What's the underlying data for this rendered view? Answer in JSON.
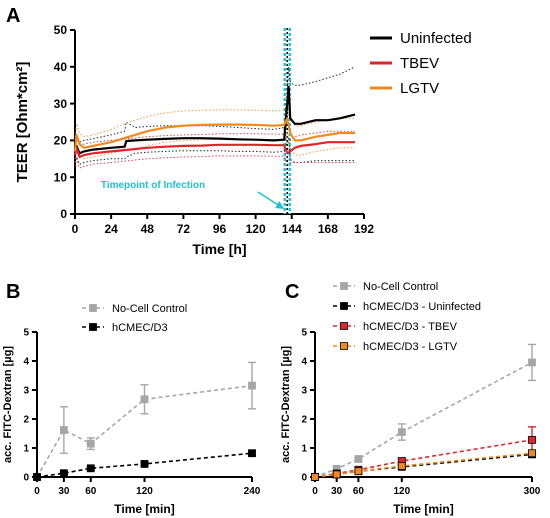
{
  "colors": {
    "uninfected": "#000000",
    "tbev": "#e0242b",
    "lgtv": "#f08a1e",
    "no_cell": "#a6a6a6",
    "hcmec": "#000000",
    "infection_line": "#1fc3cf"
  },
  "chart_data": [
    {
      "id": "A",
      "panel_letter": "A",
      "type": "line",
      "title": "",
      "xlabel": "Time [h]",
      "ylabel": "TEER [Ohm*cm²]",
      "xlim": [
        0,
        192
      ],
      "ylim": [
        0,
        50
      ],
      "xticks": [
        0,
        24,
        48,
        72,
        96,
        120,
        144,
        168,
        192
      ],
      "yticks": [
        0,
        10,
        20,
        30,
        40,
        50
      ],
      "legend_position": "top-right",
      "annotation": "Timepoint of Infection",
      "infection_time": 141,
      "series": [
        {
          "name": "Uninfected",
          "color_key": "uninfected",
          "x": [
            0,
            1,
            3,
            6,
            12,
            24,
            33,
            34,
            40,
            48,
            60,
            72,
            84,
            96,
            108,
            120,
            132,
            139,
            141,
            142,
            143,
            144,
            146,
            150,
            160,
            168,
            176,
            186
          ],
          "y": [
            16,
            18.5,
            16.5,
            17,
            17.5,
            18,
            18.3,
            19.8,
            20,
            20.2,
            20.4,
            20.6,
            20.6,
            20.5,
            20.3,
            20.2,
            20,
            20.2,
            30,
            34.5,
            26,
            25.5,
            24.5,
            24.5,
            25.5,
            25.5,
            26,
            27
          ],
          "band_upper": [
            19,
            21.5,
            19.5,
            20,
            20.5,
            21.5,
            22.5,
            25,
            23.5,
            23.8,
            24,
            24,
            24,
            23.8,
            23.5,
            23.2,
            23,
            23.5,
            33,
            40,
            36,
            35.5,
            35,
            35,
            36,
            37,
            38,
            40
          ],
          "band_lower": [
            13,
            15.5,
            13.5,
            14,
            14.5,
            15,
            15,
            15.5,
            16.5,
            16.8,
            17,
            17.2,
            17.2,
            17.2,
            17,
            17,
            16.8,
            17,
            20,
            20.5,
            15,
            14.5,
            14,
            14,
            14.5,
            14.5,
            14.5,
            14.5
          ]
        },
        {
          "name": "TBEV",
          "color_key": "tbev",
          "x": [
            0,
            1,
            3,
            6,
            12,
            24,
            36,
            48,
            60,
            72,
            84,
            96,
            108,
            120,
            132,
            139,
            141,
            143,
            146,
            150,
            160,
            168,
            176,
            186
          ],
          "y": [
            16,
            18,
            15.5,
            16,
            16.5,
            17,
            17.5,
            18,
            18.3,
            18.5,
            18.6,
            18.8,
            18.8,
            18.8,
            18.7,
            18.7,
            16.5,
            17,
            18,
            18.5,
            19,
            19.5,
            19.5,
            19.5
          ],
          "band_upper": [
            19,
            21,
            18.5,
            19,
            19.5,
            20,
            20.5,
            21,
            21.3,
            21.5,
            21.6,
            21.8,
            21.8,
            21.8,
            21.7,
            21.7,
            19.5,
            20,
            21,
            21.5,
            22,
            22.5,
            22.5,
            22.5
          ],
          "band_lower": [
            13,
            15,
            12.5,
            13,
            13.5,
            14,
            14.5,
            15,
            15.3,
            15.5,
            15.6,
            15.8,
            15.8,
            15.8,
            15.7,
            15.7,
            13.5,
            14,
            14,
            14,
            14,
            14,
            14,
            14
          ]
        },
        {
          "name": "LGTV",
          "color_key": "lgtv",
          "x": [
            0,
            1,
            3,
            6,
            12,
            24,
            36,
            48,
            60,
            72,
            84,
            96,
            108,
            120,
            132,
            139,
            141,
            143,
            146,
            150,
            160,
            168,
            176,
            186
          ],
          "y": [
            17,
            21.5,
            19,
            18,
            18.5,
            19.5,
            21,
            22.5,
            23.5,
            24,
            24.2,
            24.3,
            24.3,
            24.2,
            24,
            24.2,
            26,
            22,
            20,
            20,
            21,
            21.5,
            22,
            22
          ],
          "band_upper": [
            20,
            24.5,
            22,
            21,
            21.5,
            23,
            25,
            26.5,
            27.5,
            28,
            28.2,
            28.3,
            28.3,
            28.2,
            28,
            28.2,
            30,
            26,
            24,
            24,
            25,
            25.5,
            26,
            26
          ],
          "band_lower": [
            14,
            18.5,
            16,
            15,
            15.5,
            16.5,
            17.5,
            18.5,
            19.5,
            20,
            20.2,
            20.3,
            20.3,
            20.2,
            20,
            20.2,
            22,
            18,
            16,
            16,
            17,
            17.5,
            18,
            18
          ]
        }
      ]
    },
    {
      "id": "B",
      "panel_letter": "B",
      "type": "line",
      "title": "",
      "xlabel": "Time [min]",
      "ylabel": "acc. FITC-Dextran [µg]",
      "xlim": [
        0,
        240
      ],
      "ylim": [
        0,
        5
      ],
      "xticks": [
        0,
        30,
        60,
        120,
        240
      ],
      "yticks": [
        0,
        1,
        2,
        3,
        4,
        5
      ],
      "legend_position": "top-left",
      "series": [
        {
          "name": "No-Cell Control",
          "color_key": "no_cell",
          "x": [
            0,
            30,
            60,
            120,
            240
          ],
          "y": [
            0,
            1.62,
            1.15,
            2.68,
            3.15
          ],
          "err": [
            0,
            0.8,
            0.2,
            0.5,
            0.8
          ]
        },
        {
          "name": "hCMEC/D3",
          "color_key": "hcmec",
          "x": [
            0,
            30,
            60,
            120,
            240
          ],
          "y": [
            0,
            0.13,
            0.3,
            0.45,
            0.82
          ],
          "err": [
            0,
            0.04,
            0.04,
            0.05,
            0.08
          ]
        }
      ]
    },
    {
      "id": "C",
      "panel_letter": "C",
      "type": "line",
      "title": "",
      "xlabel": "Time [min]",
      "ylabel": "acc. FITC-Dextran [µg]",
      "xlim": [
        0,
        300
      ],
      "ylim": [
        0,
        5
      ],
      "xticks": [
        0,
        30,
        60,
        120,
        300
      ],
      "yticks": [
        0,
        1,
        2,
        3,
        4,
        5
      ],
      "legend_position": "top-left",
      "series": [
        {
          "name": "No-Cell Control",
          "color_key": "no_cell",
          "x": [
            0,
            30,
            60,
            120,
            300
          ],
          "y": [
            0,
            0.28,
            0.62,
            1.55,
            3.95
          ],
          "err": [
            0,
            0.06,
            0.08,
            0.28,
            0.62
          ]
        },
        {
          "name": "hCMEC/D3 - Uninfected",
          "color_key": "hcmec",
          "x": [
            0,
            30,
            60,
            120,
            300
          ],
          "y": [
            0,
            0.09,
            0.2,
            0.35,
            0.78
          ],
          "err": [
            0,
            0.03,
            0.04,
            0.06,
            0.1
          ]
        },
        {
          "name": "hCMEC/D3 - TBEV",
          "color_key": "tbev",
          "x": [
            0,
            30,
            60,
            120,
            300
          ],
          "y": [
            0,
            0.12,
            0.25,
            0.55,
            1.28
          ],
          "err": [
            0,
            0.04,
            0.05,
            0.1,
            0.45
          ]
        },
        {
          "name": "hCMEC/D3 - LGTV",
          "color_key": "lgtv",
          "x": [
            0,
            30,
            60,
            120,
            300
          ],
          "y": [
            0,
            0.09,
            0.2,
            0.38,
            0.82
          ],
          "err": [
            0,
            0.03,
            0.04,
            0.06,
            0.1
          ]
        }
      ]
    }
  ]
}
